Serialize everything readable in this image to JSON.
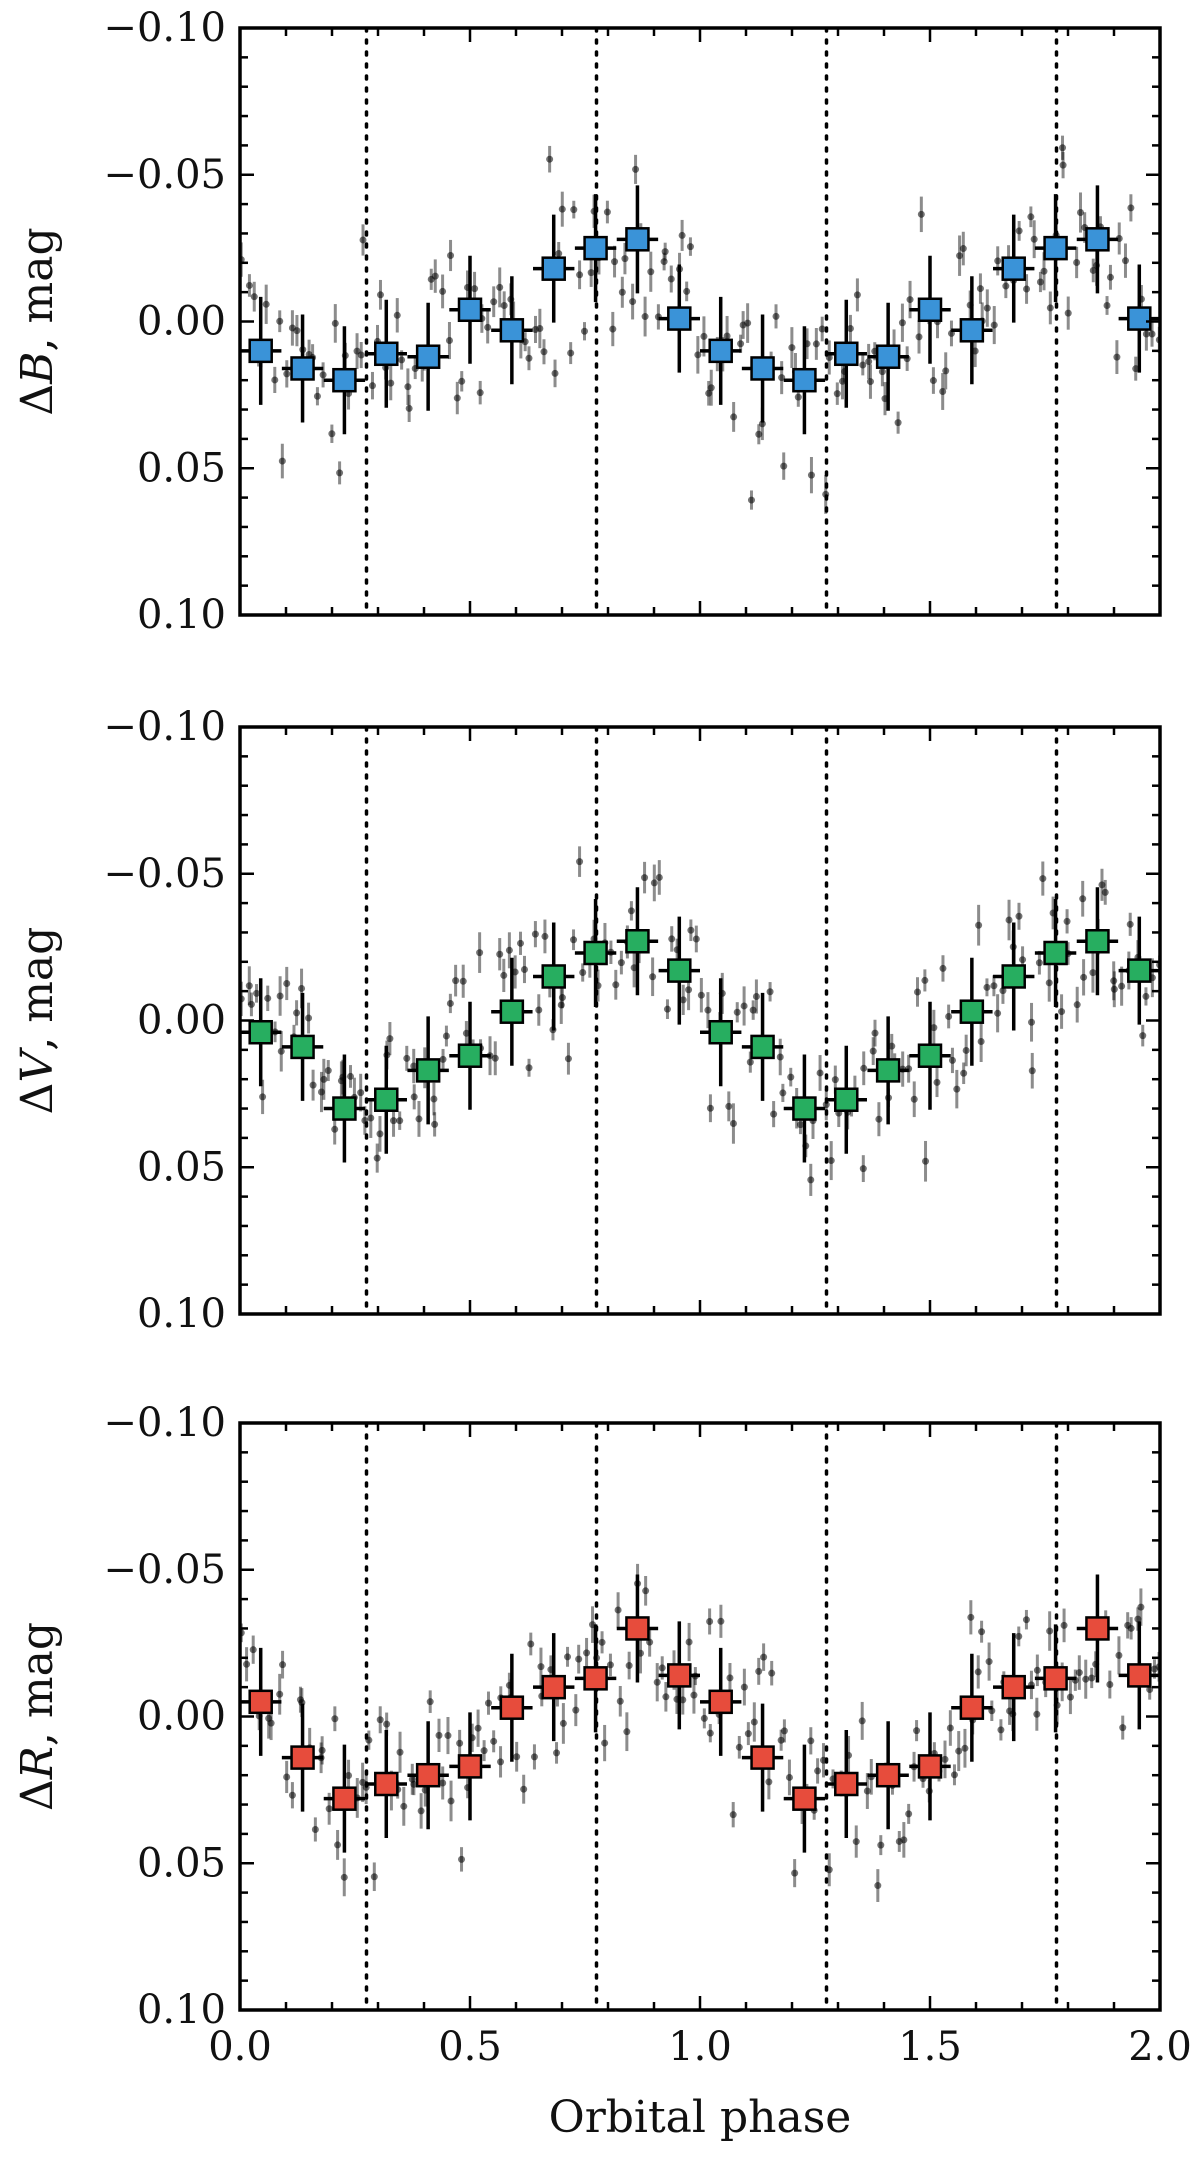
{
  "chart_data": [
    {
      "type": "scatter",
      "ylabel": "ΔB, mag",
      "ylabel_symbol": "B",
      "xlim": [
        0.0,
        2.0
      ],
      "ylim": [
        -0.1,
        0.1
      ],
      "y_inverted": true,
      "x_ticks": [
        "0.0",
        "0.5",
        "1.0",
        "1.5",
        "2.0"
      ],
      "y_ticks": [
        "−0.10",
        "−0.05",
        "0.00",
        "0.05",
        "0.10"
      ],
      "vertical_dotted_lines": [
        0.275,
        0.775,
        1.275,
        1.775
      ],
      "marker_color": "#3a93d8",
      "binned": {
        "x": [
          0.045,
          0.136,
          0.227,
          0.318,
          0.409,
          0.5,
          0.591,
          0.682,
          0.773,
          0.864,
          0.955,
          1.045,
          1.136,
          1.227,
          1.318,
          1.409,
          1.5,
          1.591,
          1.682,
          1.773,
          1.864,
          1.955
        ],
        "y": [
          0.01,
          0.016,
          0.02,
          0.011,
          0.012,
          -0.004,
          0.003,
          -0.018,
          -0.025,
          -0.028,
          -0.001,
          0.01,
          0.016,
          0.02,
          0.011,
          0.012,
          -0.004,
          0.003,
          -0.018,
          -0.025,
          -0.028,
          -0.001
        ],
        "xerr": 0.045,
        "yerr": 0.008
      },
      "raw_seed": 11,
      "raw_scatter": 0.025,
      "raw_count": 180
    },
    {
      "type": "scatter",
      "ylabel": "ΔV, mag",
      "ylabel_symbol": "V",
      "xlim": [
        0.0,
        2.0
      ],
      "ylim": [
        -0.1,
        0.1
      ],
      "y_inverted": true,
      "x_ticks": [
        "0.0",
        "0.5",
        "1.0",
        "1.5",
        "2.0"
      ],
      "y_ticks": [
        "−0.10",
        "−0.05",
        "0.00",
        "0.05",
        "0.10"
      ],
      "vertical_dotted_lines": [
        0.275,
        0.775,
        1.275,
        1.775
      ],
      "marker_color": "#27ae60",
      "binned": {
        "x": [
          0.045,
          0.136,
          0.227,
          0.318,
          0.409,
          0.5,
          0.591,
          0.682,
          0.773,
          0.864,
          0.955,
          1.045,
          1.136,
          1.227,
          1.318,
          1.409,
          1.5,
          1.591,
          1.682,
          1.773,
          1.864,
          1.955
        ],
        "y": [
          0.004,
          0.009,
          0.03,
          0.027,
          0.017,
          0.012,
          -0.003,
          -0.015,
          -0.023,
          -0.027,
          -0.017,
          0.004,
          0.009,
          0.03,
          0.027,
          0.017,
          0.012,
          -0.003,
          -0.015,
          -0.023,
          -0.027,
          -0.017
        ],
        "xerr": 0.045,
        "yerr": 0.008
      },
      "raw_seed": 23,
      "raw_scatter": 0.024,
      "raw_count": 180
    },
    {
      "type": "scatter",
      "ylabel": "ΔR, mag",
      "ylabel_symbol": "R",
      "xlabel": "Orbital phase",
      "xlim": [
        0.0,
        2.0
      ],
      "ylim": [
        -0.1,
        0.1
      ],
      "y_inverted": true,
      "x_ticks": [
        "0.0",
        "0.5",
        "1.0",
        "1.5",
        "2.0"
      ],
      "y_ticks": [
        "−0.10",
        "−0.05",
        "0.00",
        "0.05",
        "0.10"
      ],
      "vertical_dotted_lines": [
        0.275,
        0.775,
        1.275,
        1.775
      ],
      "marker_color": "#e74c3c",
      "binned": {
        "x": [
          0.045,
          0.136,
          0.227,
          0.318,
          0.409,
          0.5,
          0.591,
          0.682,
          0.773,
          0.864,
          0.955,
          1.045,
          1.136,
          1.227,
          1.318,
          1.409,
          1.5,
          1.591,
          1.682,
          1.773,
          1.864,
          1.955
        ],
        "y": [
          -0.005,
          0.014,
          0.028,
          0.023,
          0.02,
          0.017,
          -0.003,
          -0.01,
          -0.013,
          -0.03,
          -0.014,
          -0.005,
          0.014,
          0.028,
          0.023,
          0.02,
          0.017,
          -0.003,
          -0.01,
          -0.013,
          -0.03,
          -0.014
        ],
        "xerr": 0.045,
        "yerr": 0.008
      },
      "raw_seed": 37,
      "raw_scatter": 0.022,
      "raw_count": 180
    }
  ]
}
